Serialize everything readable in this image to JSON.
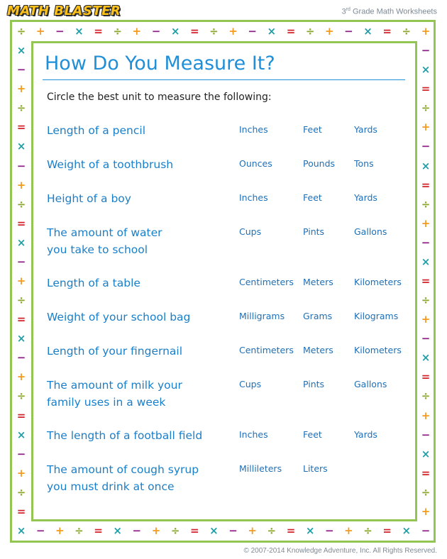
{
  "header": {
    "logo": "MATH BLASTER",
    "grade_number": "3",
    "grade_suffix": "rd",
    "grade_rest": " Grade Math Worksheets"
  },
  "worksheet": {
    "title": "How Do You Measure It?",
    "instruction": "Circle the best unit to measure the following:",
    "questions": [
      {
        "lines": [
          "Length of a pencil"
        ],
        "units": [
          "Inches",
          "Feet",
          "Yards"
        ]
      },
      {
        "lines": [
          "Weight of a toothbrush"
        ],
        "units": [
          "Ounces",
          "Pounds",
          "Tons"
        ]
      },
      {
        "lines": [
          "Height of a boy"
        ],
        "units": [
          "Inches",
          "Feet",
          "Yards"
        ]
      },
      {
        "lines": [
          "The amount of water",
          "you take to school"
        ],
        "units": [
          "Cups",
          "Pints",
          "Gallons"
        ]
      },
      {
        "lines": [
          "Length of a table"
        ],
        "units": [
          "Centimeters",
          "Meters",
          "Kilometers"
        ]
      },
      {
        "lines": [
          "Weight of your school bag"
        ],
        "units": [
          "Milligrams",
          "Grams",
          "Kilograms"
        ]
      },
      {
        "lines": [
          "Length of your fingernail"
        ],
        "units": [
          "Centimeters",
          "Meters",
          "Kilometers"
        ]
      },
      {
        "lines": [
          "The amount of milk your",
          "family uses in a week"
        ],
        "units": [
          "Cups",
          "Pints",
          "Gallons"
        ]
      },
      {
        "lines": [
          "The length of a football field"
        ],
        "units": [
          "Inches",
          "Feet",
          "Yards"
        ]
      },
      {
        "lines": [
          "The amount of cough syrup",
          "you must drink at once"
        ],
        "units": [
          "Millileters",
          "Liters"
        ]
      }
    ]
  },
  "border": {
    "symbols": [
      "÷",
      "+",
      "−",
      "×",
      "="
    ],
    "colors": {
      "÷": "#8aa62a",
      "+": "#f39a1e",
      "−": "#8e1f86",
      "×": "#1f9ea5",
      "=": "#d2232a"
    },
    "frame_color": "#93c552"
  },
  "footer": {
    "copyright": "© 2007-2014 Knowledge Adventure, Inc. All Rights Reserved."
  }
}
